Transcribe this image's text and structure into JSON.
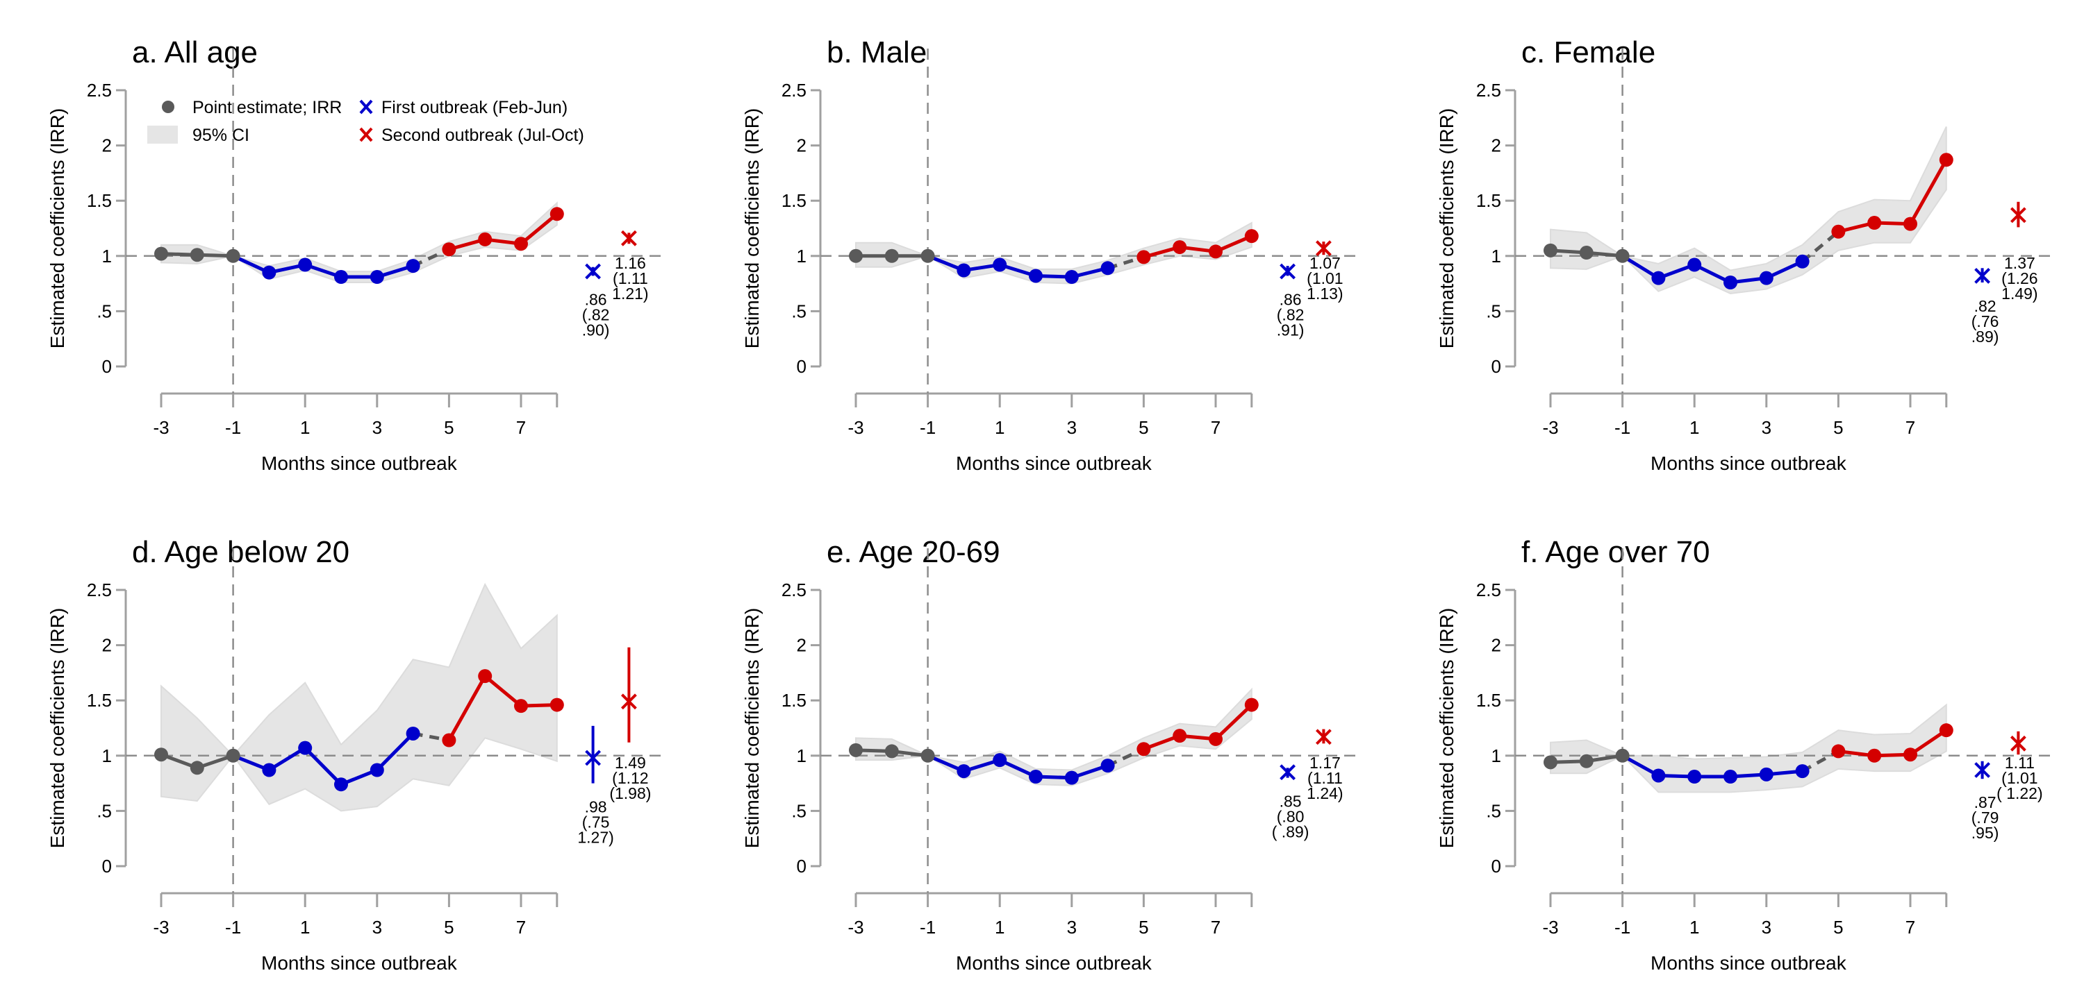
{
  "colors": {
    "pre": "#5a5a5a",
    "first": "#0000cc",
    "second": "#d40000",
    "ci": "#e5e5e5",
    "axis": "#a0a0a0",
    "ref": "#8c8c8c"
  },
  "legend": {
    "point_estimate": "Point estimate; IRR",
    "ci": "95% CI",
    "first": "First outbreak (Feb-Jun)",
    "second": "Second outbreak (Jul-Oct)"
  },
  "chart_data": [
    {
      "type": "line",
      "id": "a",
      "title": "a. All age",
      "xlabel": "Months since outbreak",
      "ylabel": "Estimated coefficients (IRR)",
      "x": [
        -3,
        -2,
        -1,
        0,
        1,
        2,
        3,
        4,
        5,
        6,
        7,
        8
      ],
      "xticks": [
        "-3",
        "-1",
        "1",
        "3",
        "5",
        "7"
      ],
      "yticks": [
        "0",
        ".5",
        "1",
        "1.5",
        "2",
        "2.5"
      ],
      "ylim": [
        0,
        2.5
      ],
      "y": [
        1.02,
        1.01,
        1.0,
        0.85,
        0.92,
        0.81,
        0.81,
        0.91,
        1.06,
        1.15,
        1.11,
        1.38
      ],
      "ci_low": [
        0.94,
        0.93,
        1.0,
        0.79,
        0.87,
        0.76,
        0.76,
        0.85,
        1.0,
        1.08,
        1.05,
        1.28
      ],
      "ci_high": [
        1.1,
        1.1,
        1.0,
        0.91,
        0.98,
        0.86,
        0.86,
        0.97,
        1.13,
        1.22,
        1.18,
        1.48
      ],
      "segments": {
        "pre": [
          -3,
          -1
        ],
        "first": [
          -1,
          4
        ],
        "second": [
          5,
          8
        ]
      },
      "summary": {
        "first": {
          "value": ".86",
          "low": "(.82",
          "high": ".90)",
          "est": 0.86,
          "lo": 0.82,
          "hi": 0.9
        },
        "second": {
          "value": "1.16",
          "low": "(1.11",
          "high": "1.21)",
          "est": 1.16,
          "lo": 1.11,
          "hi": 1.21
        }
      },
      "show_legend": true
    },
    {
      "type": "line",
      "id": "b",
      "title": "b. Male",
      "xlabel": "Months since outbreak",
      "ylabel": "Estimated coefficients (IRR)",
      "x": [
        -3,
        -2,
        -1,
        0,
        1,
        2,
        3,
        4,
        5,
        6,
        7,
        8
      ],
      "xticks": [
        "-3",
        "-1",
        "1",
        "3",
        "5",
        "7"
      ],
      "yticks": [
        "0",
        ".5",
        "1",
        "1.5",
        "2",
        "2.5"
      ],
      "ylim": [
        0,
        2.5
      ],
      "y": [
        1.0,
        1.0,
        1.0,
        0.87,
        0.92,
        0.82,
        0.81,
        0.89,
        0.99,
        1.08,
        1.04,
        1.18
      ],
      "ci_low": [
        0.9,
        0.9,
        1.0,
        0.8,
        0.86,
        0.76,
        0.75,
        0.83,
        0.92,
        1.0,
        0.97,
        1.08
      ],
      "ci_high": [
        1.12,
        1.12,
        1.0,
        0.94,
        0.99,
        0.88,
        0.88,
        0.96,
        1.07,
        1.16,
        1.12,
        1.3
      ],
      "segments": {
        "pre": [
          -3,
          -1
        ],
        "first": [
          -1,
          4
        ],
        "second": [
          5,
          8
        ]
      },
      "summary": {
        "first": {
          "value": ".86",
          "low": "(.82",
          "high": ".91)",
          "est": 0.86,
          "lo": 0.82,
          "hi": 0.91
        },
        "second": {
          "value": "1.07",
          "low": "(1.01",
          "high": "1.13)",
          "est": 1.07,
          "lo": 1.01,
          "hi": 1.13
        }
      },
      "show_legend": false
    },
    {
      "type": "line",
      "id": "c",
      "title": "c. Female",
      "xlabel": "Months since outbreak",
      "ylabel": "Estimated coefficients (IRR)",
      "x": [
        -3,
        -2,
        -1,
        0,
        1,
        2,
        3,
        4,
        5,
        6,
        7,
        8
      ],
      "xticks": [
        "-3",
        "-1",
        "1",
        "3",
        "5",
        "7"
      ],
      "yticks": [
        "0",
        ".5",
        "1",
        "1.5",
        "2",
        "2.5"
      ],
      "ylim": [
        0,
        2.5
      ],
      "y": [
        1.05,
        1.03,
        1.0,
        0.8,
        0.92,
        0.76,
        0.8,
        0.95,
        1.22,
        1.3,
        1.29,
        1.87
      ],
      "ci_low": [
        0.89,
        0.88,
        1.0,
        0.68,
        0.81,
        0.66,
        0.7,
        0.83,
        1.05,
        1.12,
        1.12,
        1.6
      ],
      "ci_high": [
        1.24,
        1.21,
        1.0,
        0.93,
        1.07,
        0.87,
        0.93,
        1.1,
        1.4,
        1.51,
        1.5,
        2.17
      ],
      "segments": {
        "pre": [
          -3,
          -1
        ],
        "first": [
          -1,
          4
        ],
        "second": [
          5,
          8
        ]
      },
      "summary": {
        "first": {
          "value": ".82",
          "low": "(.76",
          "high": ".89)",
          "est": 0.82,
          "lo": 0.76,
          "hi": 0.89
        },
        "second": {
          "value": "1.37",
          "low": "(1.26",
          "high": "1.49)",
          "est": 1.37,
          "lo": 1.26,
          "hi": 1.49
        }
      },
      "show_legend": false
    },
    {
      "type": "line",
      "id": "d",
      "title": "d. Age below 20",
      "xlabel": "Months since outbreak",
      "ylabel": "Estimated coefficients (IRR)",
      "x": [
        -3,
        -2,
        -1,
        0,
        1,
        2,
        3,
        4,
        5,
        6,
        7,
        8
      ],
      "xticks": [
        "-3",
        "-1",
        "1",
        "3",
        "5",
        "7"
      ],
      "yticks": [
        "0",
        ".5",
        "1",
        "1.5",
        "2",
        "2.5"
      ],
      "ylim": [
        0,
        2.5
      ],
      "y": [
        1.01,
        0.89,
        1.0,
        0.87,
        1.07,
        0.74,
        0.87,
        1.2,
        1.14,
        1.72,
        1.45,
        1.46
      ],
      "ci_low": [
        0.63,
        0.59,
        1.0,
        0.56,
        0.7,
        0.5,
        0.54,
        0.79,
        0.73,
        1.16,
        1.06,
        0.95
      ],
      "ci_high": [
        1.63,
        1.34,
        1.0,
        1.37,
        1.66,
        1.1,
        1.41,
        1.87,
        1.8,
        2.55,
        1.97,
        2.27
      ],
      "segments": {
        "pre": [
          -3,
          -1
        ],
        "first": [
          -1,
          4
        ],
        "second": [
          5,
          8
        ]
      },
      "summary": {
        "first": {
          "value": ".98",
          "low": "(.75",
          "high": "1.27)",
          "est": 0.98,
          "lo": 0.75,
          "hi": 1.27
        },
        "second": {
          "value": "1.49",
          "low": "(1.12",
          "high": "(1.98)",
          "est": 1.49,
          "lo": 1.12,
          "hi": 1.98
        }
      },
      "show_legend": false
    },
    {
      "type": "line",
      "id": "e",
      "title": "e. Age 20-69",
      "xlabel": "Months since outbreak",
      "ylabel": "Estimated coefficients (IRR)",
      "x": [
        -3,
        -2,
        -1,
        0,
        1,
        2,
        3,
        4,
        5,
        6,
        7,
        8
      ],
      "xticks": [
        "-3",
        "-1",
        "1",
        "3",
        "5",
        "7"
      ],
      "yticks": [
        "0",
        ".5",
        "1",
        "1.5",
        "2",
        "2.5"
      ],
      "ylim": [
        0,
        2.5
      ],
      "y": [
        1.05,
        1.04,
        1.0,
        0.86,
        0.96,
        0.81,
        0.8,
        0.91,
        1.06,
        1.18,
        1.15,
        1.46
      ],
      "ci_low": [
        0.96,
        0.96,
        1.0,
        0.79,
        0.89,
        0.74,
        0.73,
        0.84,
        0.98,
        1.09,
        1.06,
        1.33
      ],
      "ci_high": [
        1.16,
        1.15,
        1.0,
        0.94,
        1.04,
        0.88,
        0.87,
        1.0,
        1.16,
        1.29,
        1.26,
        1.6
      ],
      "segments": {
        "pre": [
          -3,
          -1
        ],
        "first": [
          -1,
          4
        ],
        "second": [
          5,
          8
        ]
      },
      "summary": {
        "first": {
          "value": ".85",
          "low": "(.80",
          "high": "( .89)",
          "est": 0.85,
          "lo": 0.8,
          "hi": 0.89
        },
        "second": {
          "value": "1.17",
          "low": "(1.11",
          "high": "1.24)",
          "est": 1.17,
          "lo": 1.11,
          "hi": 1.24
        }
      },
      "show_legend": false
    },
    {
      "type": "line",
      "id": "f",
      "title": "f. Age over 70",
      "xlabel": "Months since outbreak",
      "ylabel": "Estimated coefficients (IRR)",
      "x": [
        -3,
        -2,
        -1,
        0,
        1,
        2,
        3,
        4,
        5,
        6,
        7,
        8
      ],
      "xticks": [
        "-3",
        "-1",
        "1",
        "3",
        "5",
        "7"
      ],
      "yticks": [
        "0",
        ".5",
        "1",
        "1.5",
        "2",
        "2.5"
      ],
      "ylim": [
        0,
        2.5
      ],
      "y": [
        0.94,
        0.95,
        1.0,
        0.82,
        0.81,
        0.81,
        0.83,
        0.86,
        1.04,
        1.0,
        1.01,
        1.23
      ],
      "ci_low": [
        0.84,
        0.84,
        1.0,
        0.67,
        0.67,
        0.67,
        0.69,
        0.72,
        0.88,
        0.86,
        0.86,
        1.04
      ],
      "ci_high": [
        1.12,
        1.14,
        1.0,
        1.0,
        0.97,
        0.98,
        0.99,
        1.03,
        1.23,
        1.19,
        1.2,
        1.46
      ],
      "segments": {
        "pre": [
          -3,
          -1
        ],
        "first": [
          -1,
          4
        ],
        "second": [
          5,
          8
        ]
      },
      "summary": {
        "first": {
          "value": ".87",
          "low": "(.79",
          "high": ".95)",
          "est": 0.87,
          "lo": 0.79,
          "hi": 0.95
        },
        "second": {
          "value": "1.11",
          "low": "(1.01",
          "high": "( 1.22)",
          "est": 1.11,
          "lo": 1.01,
          "hi": 1.22
        }
      },
      "show_legend": false
    }
  ]
}
